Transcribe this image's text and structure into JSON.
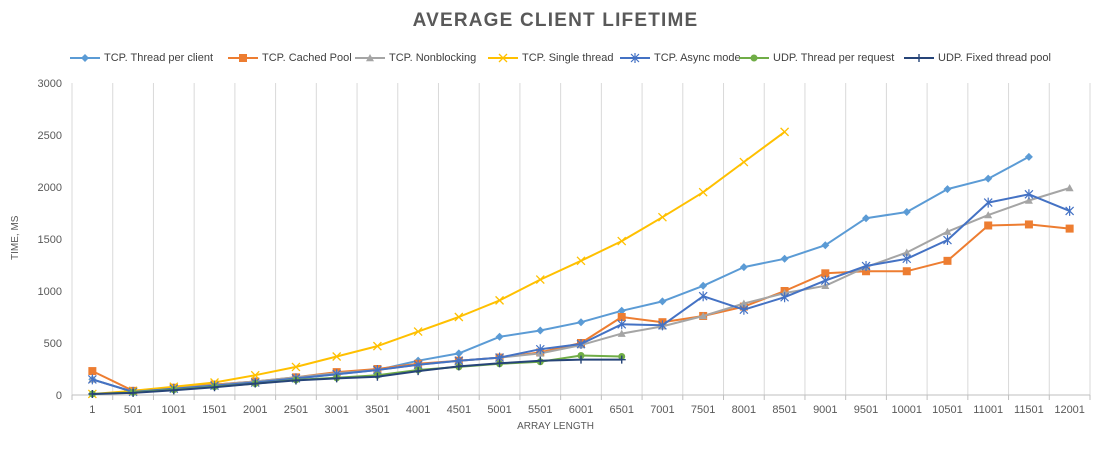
{
  "chart_data": {
    "type": "line",
    "title": "AVERAGE CLIENT LIFETIME",
    "xlabel": "ARRAY LENGTH",
    "ylabel": "TIME, MS",
    "ylim": [
      0,
      3000
    ],
    "yticks": [
      0,
      500,
      1000,
      1500,
      2000,
      2500,
      3000
    ],
    "grid": "vertical",
    "legend_position": "top",
    "categories": [
      "1",
      "501",
      "1001",
      "1501",
      "2001",
      "2501",
      "3001",
      "3501",
      "4001",
      "4501",
      "5001",
      "5501",
      "6001",
      "6501",
      "7001",
      "7501",
      "8001",
      "8501",
      "9001",
      "9501",
      "10001",
      "10501",
      "11001",
      "11501",
      "12001"
    ],
    "series": [
      {
        "name": "TCP. Thread per client",
        "color": "#5b9bd5",
        "marker": "diamond",
        "values": [
          150,
          30,
          70,
          100,
          130,
          160,
          200,
          240,
          330,
          400,
          560,
          620,
          700,
          810,
          900,
          1050,
          1230,
          1310,
          1440,
          1700,
          1760,
          1980,
          2080,
          2290,
          null
        ]
      },
      {
        "name": "TCP. Cached Pool",
        "color": "#ed7d31",
        "marker": "square",
        "values": [
          230,
          40,
          70,
          100,
          130,
          170,
          220,
          250,
          300,
          330,
          360,
          410,
          500,
          750,
          700,
          760,
          850,
          1000,
          1170,
          1190,
          1190,
          1290,
          1630,
          1640,
          1600
        ]
      },
      {
        "name": "TCP. Nonblocking",
        "color": "#a5a5a5",
        "marker": "triangle",
        "values": [
          150,
          30,
          65,
          95,
          130,
          170,
          210,
          240,
          290,
          330,
          360,
          400,
          480,
          590,
          660,
          760,
          880,
          980,
          1050,
          1230,
          1370,
          1570,
          1730,
          1870,
          1990
        ]
      },
      {
        "name": "TCP. Single thread",
        "color": "#ffc000",
        "marker": "x",
        "values": [
          10,
          40,
          80,
          120,
          190,
          270,
          370,
          470,
          610,
          750,
          910,
          1110,
          1290,
          1480,
          1710,
          1950,
          2240,
          2530,
          null,
          null,
          null,
          null,
          null,
          null,
          null
        ]
      },
      {
        "name": "TCP. Async mode",
        "color": "#4472c4",
        "marker": "asterisk",
        "values": [
          150,
          30,
          60,
          90,
          120,
          160,
          200,
          240,
          290,
          330,
          360,
          440,
          490,
          680,
          670,
          950,
          820,
          940,
          1100,
          1240,
          1310,
          1490,
          1850,
          1930,
          1770
        ]
      },
      {
        "name": "UDP. Thread per request",
        "color": "#70ad47",
        "marker": "circle",
        "values": [
          10,
          25,
          50,
          80,
          110,
          145,
          165,
          190,
          240,
          270,
          300,
          320,
          380,
          370,
          null,
          null,
          null,
          null,
          null,
          null,
          null,
          null,
          null,
          null,
          null
        ]
      },
      {
        "name": "UDP. Fixed thread pool",
        "color": "#264478",
        "marker": "plus",
        "values": [
          10,
          20,
          45,
          75,
          110,
          140,
          160,
          175,
          230,
          275,
          305,
          330,
          340,
          340,
          null,
          null,
          null,
          null,
          null,
          null,
          null,
          null,
          null,
          null,
          null
        ]
      }
    ]
  }
}
